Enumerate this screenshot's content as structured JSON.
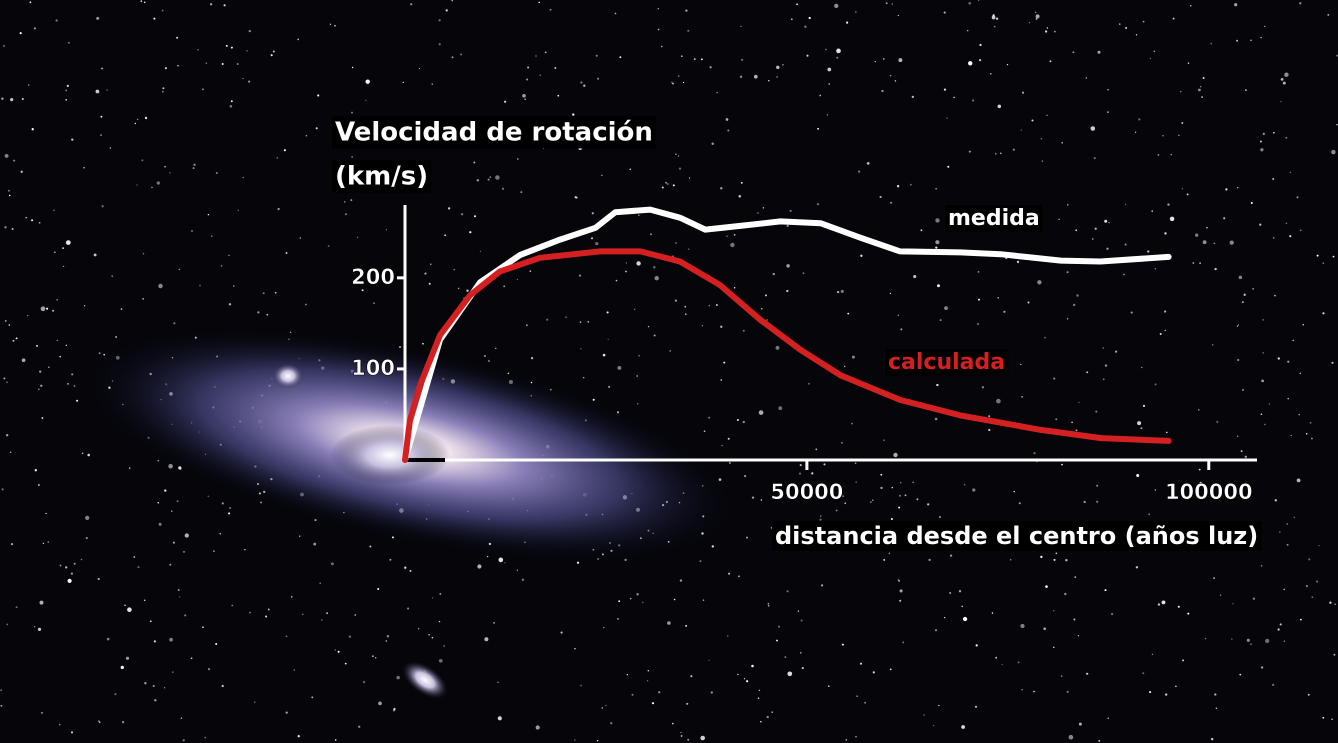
{
  "chart_data": {
    "type": "line",
    "ylabel": [
      "Velocidad de rotación",
      "(km/s)"
    ],
    "xlabel": "distancia desde el centro (años luz)",
    "xlim": [
      0,
      106000
    ],
    "ylim": [
      0,
      280
    ],
    "xticks": [
      50000,
      100000
    ],
    "yticks": [
      100,
      200
    ],
    "series": [
      {
        "name": "medida",
        "color": "#ffffff",
        "x": [
          0,
          4360,
          9340,
          14300,
          19300,
          23700,
          26150,
          30500,
          34250,
          37360,
          41700,
          46700,
          51700,
          56700,
          61600,
          69100,
          74100,
          81600,
          86500,
          95000
        ],
        "values": [
          0,
          132,
          195,
          225,
          242,
          255,
          272,
          275,
          266,
          253,
          257,
          262,
          260,
          244,
          229,
          228,
          226,
          219,
          218,
          223
        ]
      },
      {
        "name": "calculada",
        "color": "#d42020",
        "x": [
          0,
          620,
          1870,
          4360,
          8100,
          11800,
          16800,
          24300,
          29300,
          34200,
          39200,
          44200,
          49200,
          54200,
          61600,
          69100,
          79100,
          86600,
          95000
        ],
        "values": [
          0,
          44,
          82,
          137,
          181,
          207,
          222,
          229,
          229,
          218,
          192,
          154,
          121,
          93,
          66,
          49,
          33,
          24,
          21
        ]
      }
    ]
  }
}
